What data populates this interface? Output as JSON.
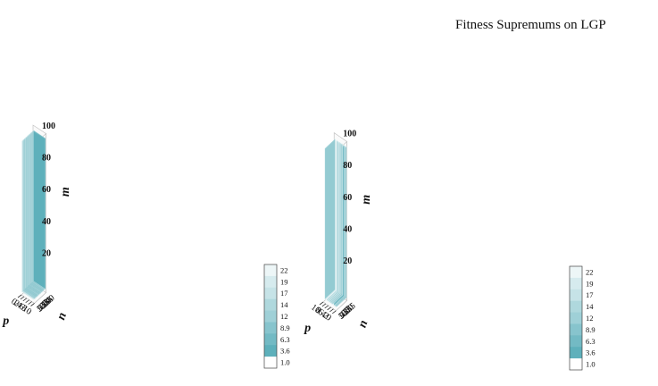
{
  "title": "Fitness Supremums on LGP",
  "chart_data": [
    {
      "type": "3d-surface-slices",
      "panel": "left",
      "xlabel": "p",
      "ylabel": "n",
      "zlabel": "m",
      "x_ticks": [
        "0",
        "2",
        "4",
        "6",
        "8",
        "10"
      ],
      "y_ticks": [
        "5",
        "10",
        "15",
        "20",
        "25",
        "30",
        "35",
        "40"
      ],
      "z_ticks": [
        "20",
        "40",
        "60",
        "80",
        "100"
      ],
      "xlim": [
        0,
        10
      ],
      "ylim": [
        0,
        40
      ],
      "zlim": [
        0,
        100
      ],
      "colorbar": {
        "ticks": [
          "22",
          "19",
          "17",
          "14",
          "12",
          "8.9",
          "6.3",
          "3.6",
          "1.0"
        ],
        "range": [
          1.0,
          22.0
        ],
        "colors": [
          "#ffffff",
          "#4aa6b3"
        ]
      },
      "slices": [
        {
          "n": 0,
          "value": 14
        },
        {
          "n": 2,
          "value": 12
        },
        {
          "n": 4,
          "value": 3.6
        },
        {
          "n": 6,
          "value": 3.6
        },
        {
          "n": 8,
          "value": 3.6
        },
        {
          "n": 10,
          "value": 3.6
        },
        {
          "n": 12,
          "value": 3.6
        },
        {
          "n": 14,
          "value": 3.6
        },
        {
          "n": 16,
          "value": 3.6
        },
        {
          "n": 18,
          "value": 3.6
        },
        {
          "n": 20,
          "value": 3.6
        },
        {
          "n": 22,
          "value": 3.6
        },
        {
          "n": 24,
          "value": 3.6
        },
        {
          "n": 26,
          "value": 3.6
        },
        {
          "n": 28,
          "value": 3.6
        },
        {
          "n": 30,
          "value": 3.6
        },
        {
          "n": 32,
          "value": 3.6
        },
        {
          "n": 34,
          "value": 3.6
        },
        {
          "n": 36,
          "value": 3.6
        },
        {
          "n": 38,
          "value": 3.6
        },
        {
          "n": 40,
          "value": 3.6
        }
      ]
    },
    {
      "type": "3d-surface-slices",
      "panel": "right",
      "xlabel": "p",
      "ylabel": "n",
      "zlabel": "m",
      "x_ticks": [
        "10",
        "8",
        "6",
        "4",
        "2",
        "0"
      ],
      "y_ticks": [
        "5",
        "10",
        "15",
        "20",
        "25",
        "30",
        "35"
      ],
      "z_ticks": [
        "20",
        "40",
        "60",
        "80",
        "100"
      ],
      "xlim": [
        0,
        10
      ],
      "ylim": [
        0,
        35
      ],
      "zlim": [
        0,
        100
      ],
      "colorbar": {
        "ticks": [
          "22",
          "19",
          "17",
          "14",
          "12",
          "8.9",
          "6.3",
          "3.6",
          "1.0"
        ],
        "range": [
          1.0,
          22.0
        ],
        "colors": [
          "#ffffff",
          "#4aa6b3"
        ]
      },
      "slices": [
        {
          "p": 10,
          "value": 3.6
        },
        {
          "p": 9.5,
          "value": 3.6
        },
        {
          "p": 9,
          "value": 3.6
        },
        {
          "p": 8.5,
          "value": 6.3
        },
        {
          "p": 8,
          "value": 3.6
        },
        {
          "p": 7,
          "value": 8.9
        },
        {
          "p": 6.5,
          "value": 3.6
        },
        {
          "p": 6,
          "value": 12
        },
        {
          "p": 5.5,
          "value": 3.6
        },
        {
          "p": 5,
          "value": 14
        },
        {
          "p": 4.5,
          "value": 3.6
        },
        {
          "p": 4,
          "value": 17
        },
        {
          "p": 3.5,
          "value": 3.6
        },
        {
          "p": 3,
          "value": 19
        },
        {
          "p": 2.5,
          "value": 6.3
        },
        {
          "p": 2,
          "value": 22
        },
        {
          "p": 1.5,
          "value": 17
        },
        {
          "p": 1,
          "value": 8.9
        }
      ]
    }
  ]
}
